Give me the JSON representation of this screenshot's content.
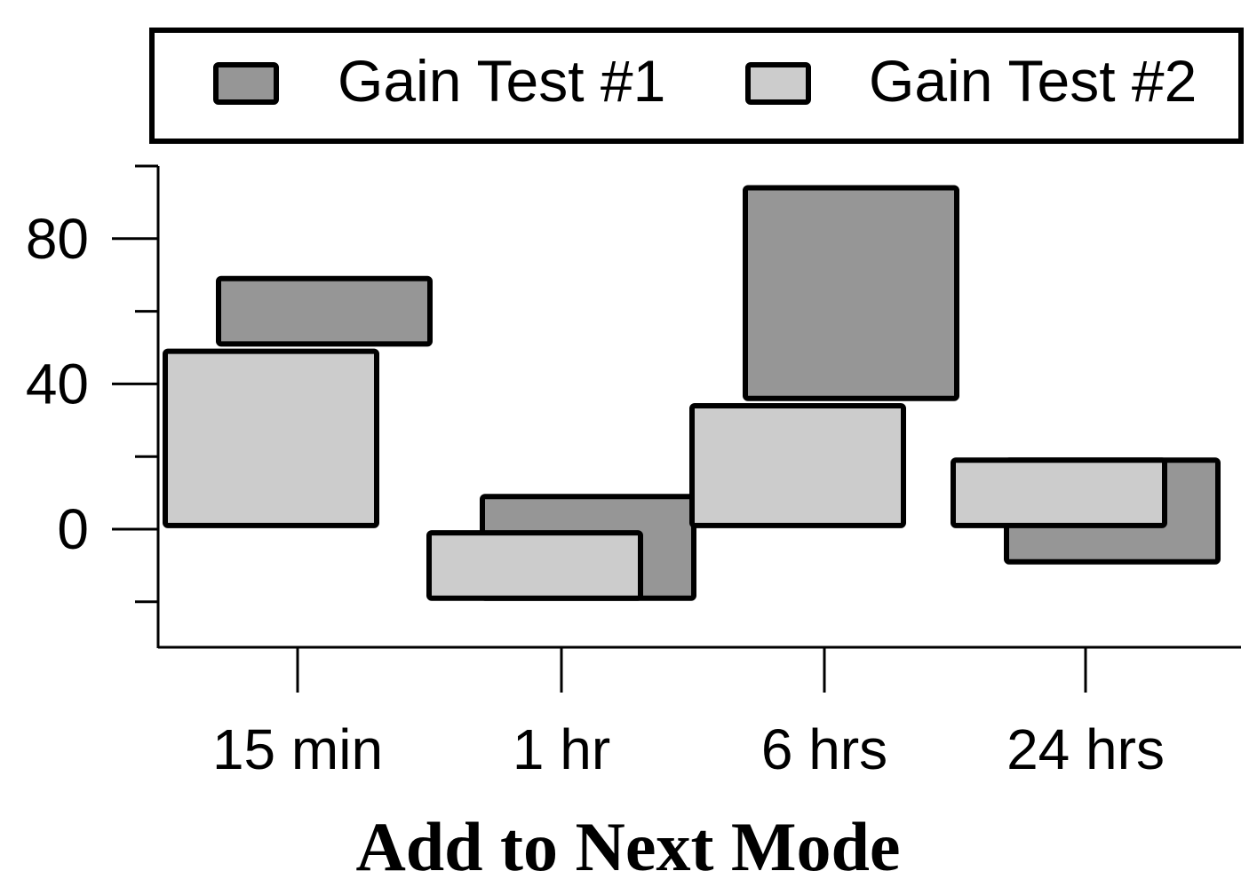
{
  "chart_data": {
    "type": "bar",
    "subtype": "floating-range",
    "title": "",
    "xlabel": "Add to Next Mode",
    "ylabel": "",
    "categories": [
      "15 min",
      "1 hr",
      "6 hrs",
      "24 hrs"
    ],
    "yticks": [
      80,
      40,
      0
    ],
    "ylim": [
      -32,
      100
    ],
    "grid": false,
    "legend_position": "top",
    "series": [
      {
        "name": "Gain Test #1",
        "color": "#969696",
        "ranges": [
          [
            51,
            69
          ],
          [
            -19,
            9
          ],
          [
            36,
            94
          ],
          [
            -9,
            19
          ]
        ]
      },
      {
        "name": "Gain Test #2",
        "color": "#cccccc",
        "ranges": [
          [
            1,
            49
          ],
          [
            -19,
            -1
          ],
          [
            1,
            34
          ],
          [
            1,
            19
          ]
        ]
      }
    ]
  }
}
